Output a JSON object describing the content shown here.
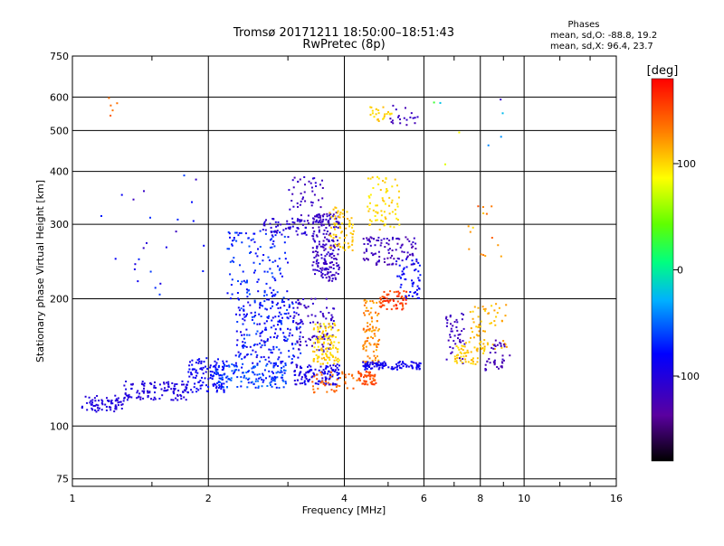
{
  "chart_data": {
    "type": "scatter",
    "title": "Tromsø 20171211 18:50:00–18:51:43",
    "subtitle": "RwPretec (8p)",
    "xlabel": "Frequency [MHz]",
    "ylabel": "Stationary phase Virtual Height [km]",
    "x_scale": "log",
    "y_scale": "log",
    "xlim": [
      1,
      16
    ],
    "ylim": [
      72,
      750
    ],
    "x_ticks": [
      1,
      2,
      4,
      6,
      8,
      10,
      16
    ],
    "x_tick_labels": [
      "1",
      "2",
      "4",
      "6",
      "8",
      "10",
      "16"
    ],
    "y_ticks": [
      75,
      100,
      200,
      300,
      400,
      500,
      600,
      750
    ],
    "y_tick_labels": [
      "75",
      "100",
      "200",
      "300",
      "400",
      "500",
      "600",
      "750"
    ],
    "grid": true,
    "phases": {
      "heading": "Phases",
      "line_o": "mean, sd,O: -88.8, 19.2",
      "line_x": "mean, sd,X:  96.4, 23.7"
    },
    "colorbar": {
      "label": "[deg]",
      "range": [
        -180,
        180
      ],
      "ticks": [
        100,
        0,
        -100
      ],
      "tick_labels": [
        "100",
        "0",
        "-100"
      ]
    },
    "clusters": [
      {
        "x": [
          1.05,
          1.3
        ],
        "y": [
          108,
          118
        ],
        "phase": [
          -105,
          -95
        ],
        "n": 70
      },
      {
        "x": [
          1.3,
          1.8
        ],
        "y": [
          115,
          128
        ],
        "phase": [
          -110,
          -90
        ],
        "n": 110
      },
      {
        "x": [
          1.8,
          2.2
        ],
        "y": [
          120,
          145
        ],
        "phase": [
          -95,
          -75
        ],
        "n": 110
      },
      {
        "x": [
          2.05,
          3.0
        ],
        "y": [
          123,
          140
        ],
        "phase": [
          -80,
          -45
        ],
        "n": 150
      },
      {
        "x": [
          2.3,
          3.2
        ],
        "y": [
          140,
          200
        ],
        "phase": [
          -100,
          -55
        ],
        "n": 230
      },
      {
        "x": [
          2.2,
          3.0
        ],
        "y": [
          200,
          290
        ],
        "phase": [
          -90,
          -55
        ],
        "n": 120
      },
      {
        "x": [
          2.6,
          3.3
        ],
        "y": [
          280,
          310
        ],
        "phase": [
          -115,
          -95
        ],
        "n": 60
      },
      {
        "x": [
          3.0,
          3.6
        ],
        "y": [
          300,
          390
        ],
        "phase": [
          -125,
          -105
        ],
        "n": 50
      },
      {
        "x": [
          3.4,
          3.9
        ],
        "y": [
          220,
          320
        ],
        "phase": [
          -125,
          -105
        ],
        "n": 200
      },
      {
        "x": [
          3.1,
          3.8
        ],
        "y": [
          150,
          200
        ],
        "phase": [
          -125,
          -105
        ],
        "n": 90
      },
      {
        "x": [
          3.4,
          3.9
        ],
        "y": [
          140,
          175
        ],
        "phase": [
          90,
          115
        ],
        "n": 110
      },
      {
        "x": [
          3.1,
          3.9
        ],
        "y": [
          125,
          140
        ],
        "phase": [
          -110,
          -80
        ],
        "n": 120
      },
      {
        "x": [
          3.4,
          4.3
        ],
        "y": [
          120,
          135
        ],
        "phase": [
          130,
          150
        ],
        "n": 45
      },
      {
        "x": [
          3.7,
          4.2
        ],
        "y": [
          260,
          330
        ],
        "phase": [
          95,
          115
        ],
        "n": 70
      },
      {
        "x": [
          4.3,
          4.7
        ],
        "y": [
          125,
          135
        ],
        "phase": [
          140,
          160
        ],
        "n": 55
      },
      {
        "x": [
          4.4,
          4.8
        ],
        "y": [
          140,
          200
        ],
        "phase": [
          110,
          140
        ],
        "n": 90
      },
      {
        "x": [
          4.8,
          5.5
        ],
        "y": [
          188,
          210
        ],
        "phase": [
          145,
          170
        ],
        "n": 60
      },
      {
        "x": [
          4.4,
          5.9
        ],
        "y": [
          136,
          142
        ],
        "phase": [
          -100,
          -80
        ],
        "n": 100
      },
      {
        "x": [
          4.5,
          5.3
        ],
        "y": [
          290,
          390
        ],
        "phase": [
          90,
          110
        ],
        "n": 70
      },
      {
        "x": [
          4.4,
          5.8
        ],
        "y": [
          240,
          280
        ],
        "phase": [
          -130,
          -110
        ],
        "n": 100
      },
      {
        "x": [
          5.2,
          5.9
        ],
        "y": [
          200,
          250
        ],
        "phase": [
          -90,
          -70
        ],
        "n": 50
      },
      {
        "x": [
          4.5,
          5.1
        ],
        "y": [
          525,
          570
        ],
        "phase": [
          95,
          110
        ],
        "n": 25
      },
      {
        "x": [
          5.0,
          5.9
        ],
        "y": [
          515,
          580
        ],
        "phase": [
          -125,
          -110
        ],
        "n": 20
      },
      {
        "x": [
          6.7,
          7.4
        ],
        "y": [
          140,
          185
        ],
        "phase": [
          -125,
          -110
        ],
        "n": 45
      },
      {
        "x": [
          7.0,
          8.2
        ],
        "y": [
          140,
          160
        ],
        "phase": [
          95,
          115
        ],
        "n": 55
      },
      {
        "x": [
          7.6,
          9.2
        ],
        "y": [
          150,
          195
        ],
        "phase": [
          100,
          125
        ],
        "n": 60
      },
      {
        "x": [
          8.2,
          9.3
        ],
        "y": [
          135,
          160
        ],
        "phase": [
          -130,
          -110
        ],
        "n": 40
      },
      {
        "x": [
          1.05,
          2.0
        ],
        "y": [
          200,
          400
        ],
        "phase": [
          -120,
          -60
        ],
        "n": 25
      },
      {
        "x": [
          1.2,
          1.5
        ],
        "y": [
          480,
          630
        ],
        "phase": [
          130,
          150
        ],
        "n": 5
      },
      {
        "x": [
          7.5,
          9.0
        ],
        "y": [
          250,
          340
        ],
        "phase": [
          90,
          150
        ],
        "n": 15
      },
      {
        "x": [
          6.0,
          9.0
        ],
        "y": [
          400,
          600
        ],
        "phase": [
          -120,
          120
        ],
        "n": 8
      }
    ]
  }
}
